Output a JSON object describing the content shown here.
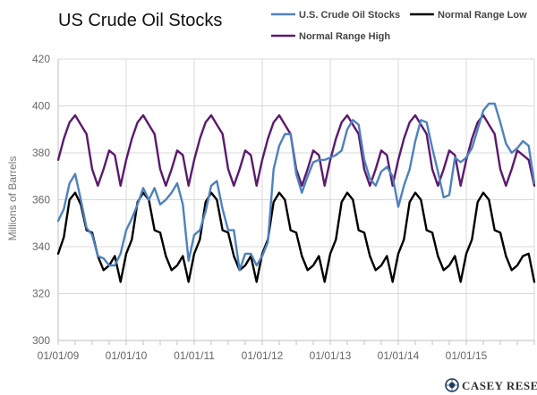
{
  "chart_data": {
    "type": "line",
    "title": "US Crude Oil Stocks",
    "ylabel": "Millions of Barrels",
    "xlabel": "",
    "ylim": [
      300,
      420
    ],
    "yticks": [
      300,
      320,
      340,
      360,
      380,
      400,
      420
    ],
    "xlim": [
      0,
      84
    ],
    "x_unit": "months since 01/01/09",
    "xtick_labels": [
      "01/01/09",
      "01/01/10",
      "01/01/11",
      "01/01/12",
      "01/01/13",
      "01/01/14",
      "01/01/15"
    ],
    "grid": true,
    "legend_position": "top",
    "series": [
      {
        "name": "U.S. Crude Oil Stocks",
        "color": "#4f81bd",
        "x": [
          0,
          1,
          2,
          3,
          4,
          5,
          6,
          7,
          8,
          9,
          10,
          11,
          12,
          13,
          14,
          15,
          16,
          17,
          18,
          19,
          20,
          21,
          22,
          23,
          24,
          25,
          26,
          27,
          28,
          29,
          30,
          31,
          32,
          33,
          34,
          35,
          36,
          37,
          38,
          39,
          40,
          41,
          42,
          43,
          44,
          45,
          46,
          47,
          48,
          49,
          50,
          51,
          52,
          53,
          54,
          55,
          56,
          57,
          58,
          59,
          60,
          61,
          62,
          63,
          64,
          65,
          66,
          67,
          68,
          69,
          70,
          71,
          72,
          73,
          74,
          75,
          76,
          77,
          78,
          79,
          80,
          81,
          82,
          83,
          84
        ],
        "values": [
          351,
          356,
          367,
          371,
          360,
          348,
          345,
          336,
          335,
          332,
          332,
          337,
          347,
          352,
          358,
          365,
          360,
          365,
          358,
          360,
          363,
          367,
          358,
          334,
          345,
          347,
          355,
          366,
          368,
          356,
          347,
          347,
          330,
          337,
          337,
          332,
          336,
          342,
          373,
          383,
          388,
          388,
          371,
          363,
          370,
          376,
          377,
          377,
          378,
          379,
          381,
          390,
          394,
          392,
          377,
          369,
          366,
          372,
          374,
          370,
          357,
          366,
          373,
          385,
          394,
          393,
          382,
          372,
          361,
          362,
          378,
          376,
          378,
          382,
          390,
          398,
          401,
          401,
          393,
          384,
          380,
          382,
          385,
          383,
          367
        ]
      },
      {
        "name": "Normal Range Low",
        "color": "#000000",
        "x": [
          0,
          1,
          2,
          3,
          4,
          5,
          6,
          7,
          8,
          9,
          10,
          11,
          12,
          13,
          14,
          15,
          16,
          17,
          18,
          19,
          20,
          21,
          22,
          23,
          24,
          25,
          26,
          27,
          28,
          29,
          30,
          31,
          32,
          33,
          34,
          35,
          36,
          37,
          38,
          39,
          40,
          41,
          42,
          43,
          44,
          45,
          46,
          47,
          48,
          49,
          50,
          51,
          52,
          53,
          54,
          55,
          56,
          57,
          58,
          59,
          60,
          61,
          62,
          63,
          64,
          65,
          66,
          67,
          68,
          69,
          70,
          71,
          72,
          73,
          74,
          75,
          76,
          77,
          78,
          79,
          80,
          81,
          82,
          83,
          84
        ],
        "values": [
          337,
          344,
          360,
          363,
          358,
          347,
          346,
          336,
          330,
          332,
          336,
          325,
          337,
          343,
          359,
          363,
          360,
          347,
          346,
          336,
          330,
          332,
          336,
          325,
          337,
          343,
          359,
          363,
          360,
          347,
          346,
          336,
          330,
          332,
          336,
          325,
          337,
          343,
          359,
          363,
          360,
          347,
          346,
          336,
          330,
          332,
          336,
          325,
          337,
          343,
          359,
          363,
          360,
          347,
          346,
          336,
          330,
          332,
          336,
          325,
          337,
          343,
          359,
          363,
          360,
          347,
          346,
          336,
          330,
          332,
          336,
          325,
          337,
          343,
          359,
          363,
          360,
          347,
          346,
          336,
          330,
          332,
          336,
          337,
          325
        ]
      },
      {
        "name": "Normal Range High",
        "color": "#5b1a6e",
        "x": [
          0,
          1,
          2,
          3,
          4,
          5,
          6,
          7,
          8,
          9,
          10,
          11,
          12,
          13,
          14,
          15,
          16,
          17,
          18,
          19,
          20,
          21,
          22,
          23,
          24,
          25,
          26,
          27,
          28,
          29,
          30,
          31,
          32,
          33,
          34,
          35,
          36,
          37,
          38,
          39,
          40,
          41,
          42,
          43,
          44,
          45,
          46,
          47,
          48,
          49,
          50,
          51,
          52,
          53,
          54,
          55,
          56,
          57,
          58,
          59,
          60,
          61,
          62,
          63,
          64,
          65,
          66,
          67,
          68,
          69,
          70,
          71,
          72,
          73,
          74,
          75,
          76,
          77,
          78,
          79,
          80,
          81,
          82,
          83,
          84
        ],
        "values": [
          377,
          386,
          393,
          396,
          392,
          388,
          373,
          366,
          373,
          381,
          379,
          366,
          377,
          386,
          393,
          396,
          392,
          388,
          373,
          366,
          373,
          381,
          379,
          366,
          377,
          386,
          393,
          396,
          392,
          388,
          373,
          366,
          373,
          381,
          379,
          366,
          377,
          386,
          393,
          396,
          392,
          388,
          373,
          366,
          373,
          381,
          379,
          366,
          377,
          386,
          393,
          396,
          392,
          388,
          373,
          366,
          373,
          381,
          379,
          366,
          377,
          386,
          393,
          396,
          392,
          388,
          373,
          366,
          373,
          381,
          379,
          366,
          377,
          386,
          393,
          396,
          392,
          388,
          373,
          366,
          373,
          381,
          379,
          377,
          366
        ]
      }
    ]
  },
  "brand": {
    "name": "CASEY RESEARCH",
    "color": "#1f3a5f"
  }
}
